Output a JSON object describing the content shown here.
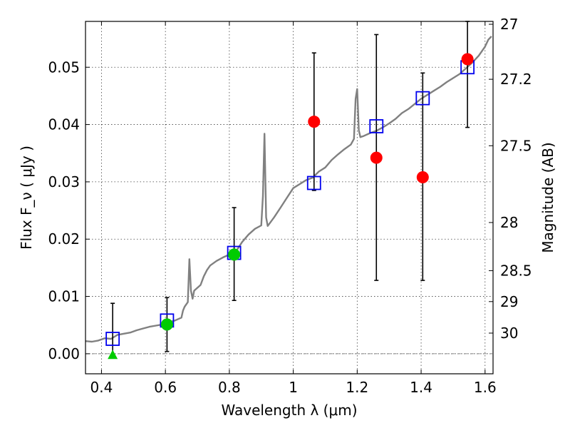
{
  "chart_data": {
    "type": "scatter",
    "xlabel": "Wavelength  λ (μm)",
    "ylabel": "Flux  F_ν  ( μJy )",
    "ylabel_right": "Magnitude (AB)",
    "xlim": [
      0.35,
      1.625
    ],
    "ylim": [
      -0.0035,
      0.058
    ],
    "grid": true,
    "x_ticks": [
      {
        "value": 0.4,
        "label": "0.4"
      },
      {
        "value": 0.6,
        "label": "0.6"
      },
      {
        "value": 0.8,
        "label": "0.8"
      },
      {
        "value": 1.0,
        "label": "1"
      },
      {
        "value": 1.2,
        "label": "1.2"
      },
      {
        "value": 1.4,
        "label": "1.4"
      },
      {
        "value": 1.6,
        "label": "1.6"
      }
    ],
    "y_ticks": [
      {
        "value": 0.0,
        "label": "0.00"
      },
      {
        "value": 0.01,
        "label": "0.01"
      },
      {
        "value": 0.02,
        "label": "0.02"
      },
      {
        "value": 0.03,
        "label": "0.03"
      },
      {
        "value": 0.04,
        "label": "0.04"
      },
      {
        "value": 0.05,
        "label": "0.05"
      }
    ],
    "right_ticks": [
      {
        "label": "27",
        "flux": 0.0575
      },
      {
        "label": "27.2",
        "flux": 0.0479
      },
      {
        "label": "27.5",
        "flux": 0.0363
      },
      {
        "label": "28",
        "flux": 0.0229
      },
      {
        "label": "28.5",
        "flux": 0.0145
      },
      {
        "label": "29",
        "flux": 0.0091
      },
      {
        "label": "30",
        "flux": 0.0036
      }
    ],
    "series": [
      {
        "kind": "line",
        "color": "#808080",
        "x": [
          0.35,
          0.37,
          0.39,
          0.41,
          0.43,
          0.45,
          0.47,
          0.49,
          0.51,
          0.53,
          0.55,
          0.57,
          0.59,
          0.61,
          0.63,
          0.65,
          0.655,
          0.66,
          0.67,
          0.675,
          0.68,
          0.685,
          0.69,
          0.71,
          0.72,
          0.73,
          0.74,
          0.76,
          0.78,
          0.8,
          0.82,
          0.84,
          0.86,
          0.88,
          0.9,
          0.905,
          0.91,
          0.915,
          0.92,
          0.94,
          0.96,
          0.98,
          1.0,
          1.02,
          1.04,
          1.06,
          1.08,
          1.1,
          1.12,
          1.14,
          1.16,
          1.18,
          1.19,
          1.195,
          1.2,
          1.205,
          1.21,
          1.22,
          1.24,
          1.26,
          1.28,
          1.3,
          1.32,
          1.34,
          1.36,
          1.38,
          1.4,
          1.42,
          1.44,
          1.46,
          1.48,
          1.5,
          1.52,
          1.54,
          1.56,
          1.58,
          1.59,
          1.6,
          1.61,
          1.62
        ],
        "y": [
          0.0022,
          0.0021,
          0.0023,
          0.0027,
          0.0026,
          0.0033,
          0.0035,
          0.0037,
          0.0041,
          0.0044,
          0.0047,
          0.0049,
          0.0051,
          0.0055,
          0.0058,
          0.0063,
          0.0075,
          0.0082,
          0.009,
          0.0165,
          0.011,
          0.0096,
          0.011,
          0.012,
          0.0135,
          0.0146,
          0.0154,
          0.0162,
          0.0168,
          0.0173,
          0.0178,
          0.0195,
          0.0208,
          0.0218,
          0.0224,
          0.0275,
          0.0384,
          0.0238,
          0.0223,
          0.0238,
          0.0255,
          0.0272,
          0.0289,
          0.0296,
          0.0303,
          0.0307,
          0.0318,
          0.0325,
          0.0338,
          0.0348,
          0.0357,
          0.0365,
          0.0375,
          0.0445,
          0.0462,
          0.039,
          0.0378,
          0.038,
          0.0385,
          0.0389,
          0.0395,
          0.0402,
          0.041,
          0.042,
          0.0427,
          0.0436,
          0.0445,
          0.0452,
          0.0459,
          0.0466,
          0.0474,
          0.0481,
          0.0488,
          0.0498,
          0.0508,
          0.052,
          0.0528,
          0.0536,
          0.0548,
          0.0554
        ]
      },
      {
        "kind": "open-square",
        "color": "#0000ee",
        "points": [
          {
            "x": 0.435,
            "y": 0.0026
          },
          {
            "x": 0.605,
            "y": 0.0058
          },
          {
            "x": 0.815,
            "y": 0.0176
          },
          {
            "x": 1.065,
            "y": 0.0298
          },
          {
            "x": 1.26,
            "y": 0.0397
          },
          {
            "x": 1.405,
            "y": 0.0446
          },
          {
            "x": 1.545,
            "y": 0.05
          }
        ]
      },
      {
        "kind": "filled-circle",
        "color": "#ff0000",
        "points": [
          {
            "x": 1.065,
            "y": 0.0405,
            "lo": 0.0285,
            "hi": 0.0525
          },
          {
            "x": 1.26,
            "y": 0.0342,
            "lo": 0.0128,
            "hi": 0.0557
          },
          {
            "x": 1.405,
            "y": 0.0308,
            "lo": 0.0128,
            "hi": 0.049
          },
          {
            "x": 1.545,
            "y": 0.0514,
            "lo": 0.0395,
            "hi": 0.058
          }
        ]
      },
      {
        "kind": "filled-circle",
        "color": "#00cc00",
        "points": [
          {
            "x": 0.605,
            "y": 0.0051,
            "lo": 0.0004,
            "hi": 0.0098
          },
          {
            "x": 0.815,
            "y": 0.0173,
            "lo": 0.0093,
            "hi": 0.0255
          }
        ]
      },
      {
        "kind": "triangle",
        "color": "#00cc00",
        "points": [
          {
            "x": 0.435,
            "y": -0.0003,
            "lo": -0.0003,
            "hi": 0.0088
          }
        ]
      }
    ],
    "zero_line": {
      "y": 0.0
    }
  }
}
